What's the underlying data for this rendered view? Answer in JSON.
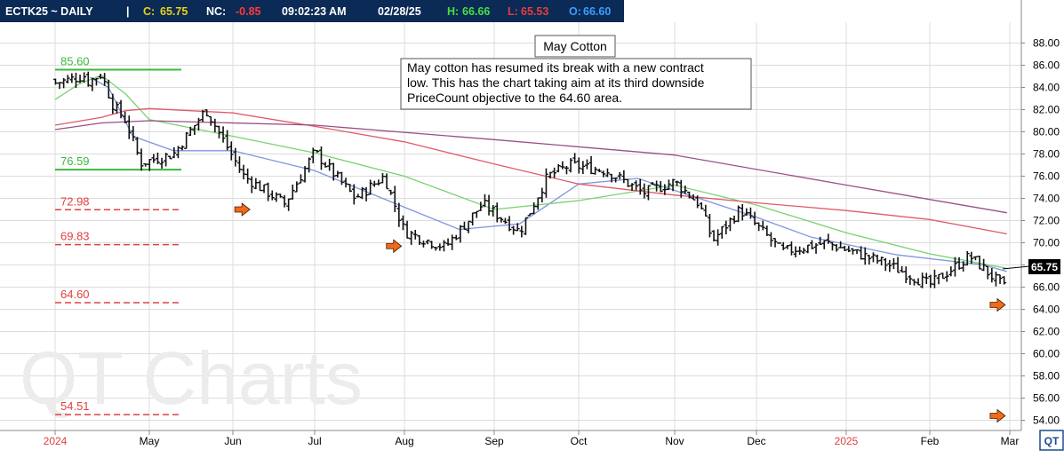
{
  "header": {
    "symbol": "ECTK25 ~ DAILY",
    "sep": "|",
    "close_label": "C:",
    "close_value": "65.75",
    "nc_label": "NC:",
    "nc_value": "-0.85",
    "time": "09:02:23 AM",
    "date": "02/28/25",
    "high_label": "H:",
    "high_value": "66.66",
    "low_label": "L:",
    "low_value": "65.53",
    "open_label": "O:",
    "open_value": "66.60"
  },
  "watermark": "QT Charts",
  "annotation": {
    "title": "May Cotton",
    "body": [
      "May cotton has resumed its break with a new contract",
      "low.  This has the chart taking aim at its third downside",
      "PriceCount objective to the 64.60 area."
    ]
  },
  "last_price_tag": "65.75",
  "logo_text": "QT",
  "colors": {
    "header_bg": "#0b2a55",
    "close": "#e8d21a",
    "net_change": "#ff3a3a",
    "high": "#44e044",
    "low": "#e83c3c",
    "open": "#3aa0ff",
    "ma_blue": "#7f95e0",
    "ma_green": "#79d271",
    "ma_red": "#e05a6a",
    "ma_purple": "#9a4f86",
    "target_red": "#e04040",
    "level_green": "#3cb83c",
    "arrow": "#ef6a1a"
  },
  "chart_data": {
    "type": "candlestick",
    "symbol": "ECTK25",
    "ylim": [
      53,
      89
    ],
    "y_ticks": [
      "54.00",
      "56.00",
      "58.00",
      "60.00",
      "62.00",
      "64.00",
      "66.00",
      "68.00",
      "70.00",
      "72.00",
      "74.00",
      "76.00",
      "78.00",
      "80.00",
      "82.00",
      "84.00",
      "86.00",
      "88.00"
    ],
    "x_ticks": [
      {
        "label": "2024",
        "date": "2024-01-02",
        "color": "#e04040"
      },
      {
        "label": "May",
        "date": "2024-05-01"
      },
      {
        "label": "Jun",
        "date": "2024-06-01"
      },
      {
        "label": "Jul",
        "date": "2024-07-01"
      },
      {
        "label": "Aug",
        "date": "2024-08-01"
      },
      {
        "label": "Sep",
        "date": "2024-09-01"
      },
      {
        "label": "Oct",
        "date": "2024-10-01"
      },
      {
        "label": "Nov",
        "date": "2024-11-01"
      },
      {
        "label": "Dec",
        "date": "2024-12-01"
      },
      {
        "label": "2025",
        "date": "2025-01-01",
        "color": "#e04040"
      },
      {
        "label": "Feb",
        "date": "2025-02-01"
      },
      {
        "label": "Mar",
        "date": "2025-03-01"
      }
    ],
    "price_path": [
      {
        "date": "2024-02-10",
        "price": 84.4
      },
      {
        "date": "2024-03-01",
        "price": 85.2
      },
      {
        "date": "2024-03-15",
        "price": 82.5
      },
      {
        "date": "2024-04-01",
        "price": 81.0
      },
      {
        "date": "2024-04-20",
        "price": 77.2
      },
      {
        "date": "2024-05-10",
        "price": 78.0
      },
      {
        "date": "2024-05-22",
        "price": 82.0
      },
      {
        "date": "2024-06-05",
        "price": 76.0
      },
      {
        "date": "2024-06-20",
        "price": 73.5
      },
      {
        "date": "2024-07-01",
        "price": 78.2
      },
      {
        "date": "2024-07-15",
        "price": 74.0
      },
      {
        "date": "2024-07-25",
        "price": 76.0
      },
      {
        "date": "2024-08-01",
        "price": 71.0
      },
      {
        "date": "2024-08-15",
        "price": 69.6
      },
      {
        "date": "2024-08-28",
        "price": 73.5
      },
      {
        "date": "2024-09-10",
        "price": 71.0
      },
      {
        "date": "2024-09-20",
        "price": 76.0
      },
      {
        "date": "2024-09-28",
        "price": 77.0
      },
      {
        "date": "2024-10-10",
        "price": 76.5
      },
      {
        "date": "2024-10-22",
        "price": 74.5
      },
      {
        "date": "2024-11-01",
        "price": 75.5
      },
      {
        "date": "2024-11-10",
        "price": 73.5
      },
      {
        "date": "2024-11-15",
        "price": 70.2
      },
      {
        "date": "2024-11-25",
        "price": 73.0
      },
      {
        "date": "2024-12-10",
        "price": 69.2
      },
      {
        "date": "2024-12-25",
        "price": 70.0
      },
      {
        "date": "2025-01-15",
        "price": 68.2
      },
      {
        "date": "2025-02-01",
        "price": 66.2
      },
      {
        "date": "2025-02-15",
        "price": 68.8
      },
      {
        "date": "2025-02-28",
        "price": 65.75
      }
    ],
    "moving_averages": [
      {
        "color": "#7f95e0",
        "points": [
          [
            "2024-02-15",
            84.9
          ],
          [
            "2024-03-10",
            84.0
          ],
          [
            "2024-04-10",
            79.6
          ],
          [
            "2024-05-10",
            78.3
          ],
          [
            "2024-06-01",
            78.3
          ],
          [
            "2024-07-01",
            76.5
          ],
          [
            "2024-08-01",
            73.2
          ],
          [
            "2024-08-20",
            71.2
          ],
          [
            "2024-09-10",
            71.7
          ],
          [
            "2024-10-01",
            75.3
          ],
          [
            "2024-10-20",
            75.8
          ],
          [
            "2024-11-10",
            74.0
          ],
          [
            "2024-12-01",
            72.3
          ],
          [
            "2024-12-20",
            70.5
          ],
          [
            "2025-01-20",
            68.9
          ],
          [
            "2025-02-20",
            68.0
          ],
          [
            "2025-02-28",
            67.4
          ]
        ]
      },
      {
        "color": "#79d271",
        "points": [
          [
            "2024-01-02",
            82.9
          ],
          [
            "2024-02-01",
            84.3
          ],
          [
            "2024-03-01",
            85.1
          ],
          [
            "2024-04-01",
            83.4
          ],
          [
            "2024-05-01",
            81.1
          ],
          [
            "2024-06-01",
            79.6
          ],
          [
            "2024-07-01",
            78.1
          ],
          [
            "2024-08-01",
            76.0
          ],
          [
            "2024-09-01",
            73.0
          ],
          [
            "2024-10-01",
            73.8
          ],
          [
            "2024-11-01",
            75.2
          ],
          [
            "2024-12-01",
            73.4
          ],
          [
            "2025-01-01",
            70.9
          ],
          [
            "2025-02-01",
            69.0
          ],
          [
            "2025-02-28",
            67.7
          ]
        ]
      },
      {
        "color": "#e05a6a",
        "points": [
          [
            "2024-01-02",
            80.6
          ],
          [
            "2024-03-01",
            81.3
          ],
          [
            "2024-04-01",
            81.9
          ],
          [
            "2024-05-01",
            82.1
          ],
          [
            "2024-06-01",
            81.7
          ],
          [
            "2024-07-01",
            80.5
          ],
          [
            "2024-08-01",
            79.1
          ],
          [
            "2024-09-01",
            77.1
          ],
          [
            "2024-10-01",
            75.3
          ],
          [
            "2024-11-01",
            74.3
          ],
          [
            "2024-12-01",
            73.6
          ],
          [
            "2025-01-01",
            72.9
          ],
          [
            "2025-02-01",
            72.1
          ],
          [
            "2025-02-28",
            70.8
          ]
        ]
      },
      {
        "color": "#9a4f86",
        "points": [
          [
            "2024-01-02",
            80.2
          ],
          [
            "2024-03-01",
            80.8
          ],
          [
            "2024-05-01",
            81.0
          ],
          [
            "2024-07-01",
            80.6
          ],
          [
            "2024-09-01",
            79.3
          ],
          [
            "2024-11-01",
            77.9
          ],
          [
            "2025-01-01",
            75.2
          ],
          [
            "2025-02-28",
            72.7
          ]
        ]
      }
    ],
    "levels": [
      {
        "label": "85.60",
        "value": 85.6,
        "style": "solid",
        "color": "#3cb83c",
        "from": "2024-01-02",
        "to": "2024-05-20"
      },
      {
        "label": "76.59",
        "value": 76.59,
        "style": "solid",
        "color": "#3cb83c",
        "from": "2024-01-02",
        "to": "2024-05-20"
      },
      {
        "label": "72.98",
        "value": 72.98,
        "style": "dashed",
        "color": "#e04040",
        "from": "2024-01-02",
        "to": "2024-05-20"
      },
      {
        "label": "69.83",
        "value": 69.83,
        "style": "dashed",
        "color": "#e04040",
        "from": "2024-01-02",
        "to": "2024-05-20"
      },
      {
        "label": "64.60",
        "value": 64.6,
        "style": "dashed",
        "color": "#e04040",
        "from": "2024-01-02",
        "to": "2024-05-20"
      },
      {
        "label": "54.51",
        "value": 54.51,
        "style": "dashed",
        "color": "#e04040",
        "from": "2024-01-02",
        "to": "2024-05-20"
      }
    ],
    "arrows": [
      {
        "date": "2024-06-03",
        "price": 73.0
      },
      {
        "date": "2024-07-27",
        "price": 69.7
      },
      {
        "date": "2025-02-24",
        "price": 64.4
      },
      {
        "date": "2025-02-24",
        "price": 54.4
      }
    ],
    "last_price": 65.75
  }
}
